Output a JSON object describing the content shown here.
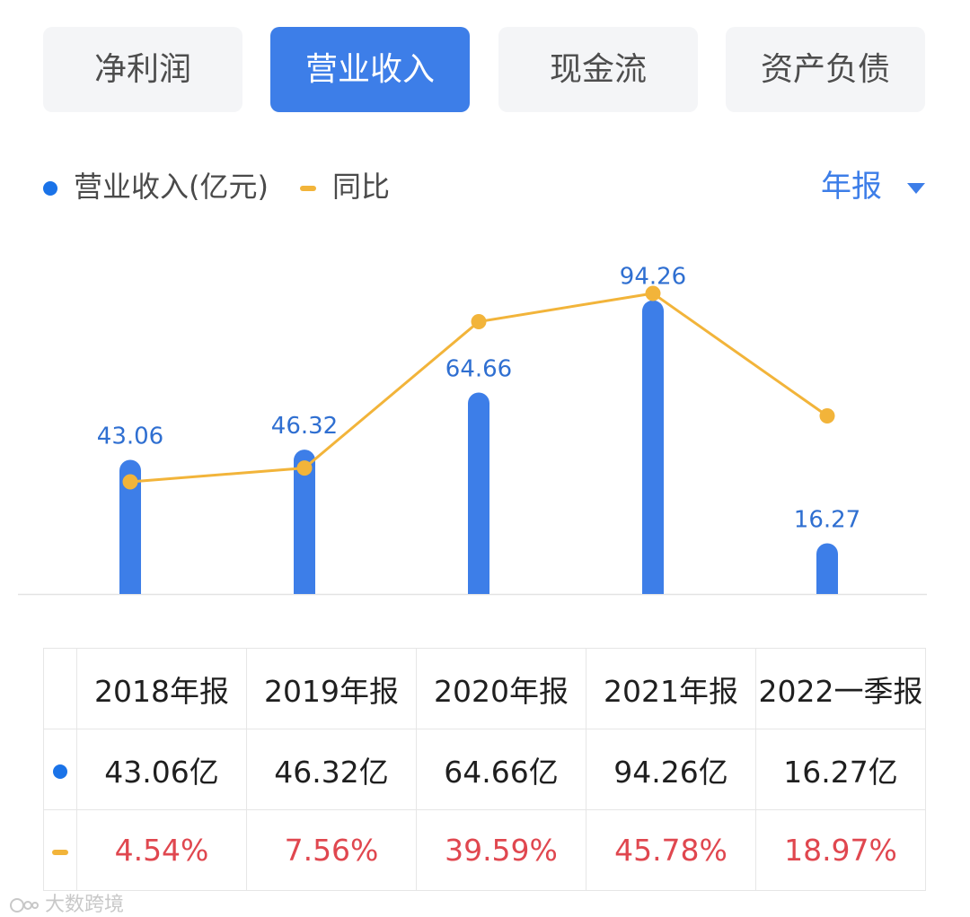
{
  "tabs": [
    "净利润",
    "营业收入",
    "现金流",
    "资产负债"
  ],
  "active_tab": 1,
  "legend": {
    "revenue": "营业收入(亿元)",
    "yoy": "同比"
  },
  "period_selector": "年报",
  "colors": {
    "accent": "#3d7ee8",
    "bar": "#3d7ee8",
    "line": "#f2b43a",
    "growth_text": "#e0474f"
  },
  "chart_data": {
    "type": "bar+line",
    "categories": [
      "2018年报",
      "2019年报",
      "2020年报",
      "2021年报",
      "2022一季报"
    ],
    "series": [
      {
        "name": "营业收入(亿元)",
        "type": "bar",
        "values": [
          43.06,
          46.32,
          64.66,
          94.26,
          16.27
        ],
        "labels": [
          "43.06",
          "46.32",
          "64.66",
          "94.26",
          "16.27"
        ]
      },
      {
        "name": "同比",
        "type": "line",
        "unit": "%",
        "values": [
          4.54,
          7.56,
          39.59,
          45.78,
          18.97
        ]
      }
    ],
    "bar_range": [
      0,
      110
    ],
    "line_range": [
      -20,
      55
    ]
  },
  "table": {
    "headers": [
      "2018年报",
      "2019年报",
      "2020年报",
      "2021年报",
      "2022一季报"
    ],
    "revenue_row": [
      "43.06亿",
      "46.32亿",
      "64.66亿",
      "94.26亿",
      "16.27亿"
    ],
    "growth_row": [
      "4.54%",
      "7.56%",
      "39.59%",
      "45.78%",
      "18.97%"
    ]
  },
  "watermark": "大数跨境"
}
